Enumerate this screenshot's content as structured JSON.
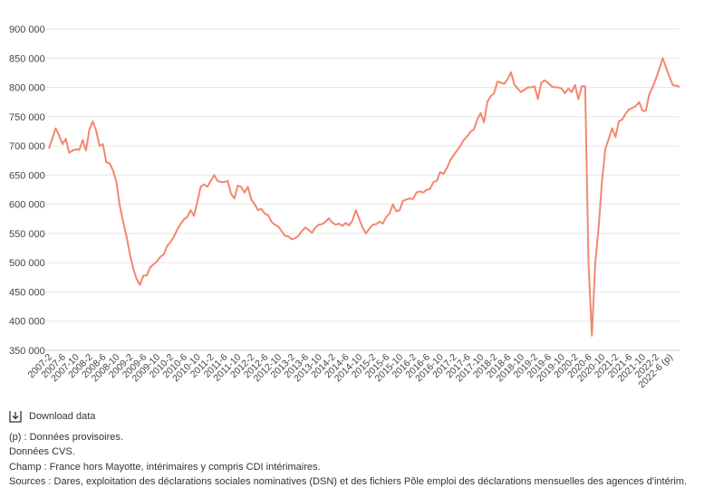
{
  "chart_data": {
    "type": "line",
    "title": "",
    "xlabel": "",
    "ylabel": "",
    "ylim": [
      350000,
      900000
    ],
    "yticks": [
      350000,
      400000,
      450000,
      500000,
      550000,
      600000,
      650000,
      700000,
      750000,
      800000,
      850000,
      900000
    ],
    "ytick_labels": [
      "350 000",
      "400 000",
      "450 000",
      "500 000",
      "550 000",
      "600 000",
      "650 000",
      "700 000",
      "750 000",
      "800 000",
      "850 000",
      "900 000"
    ],
    "grid": "horizontal",
    "line_color": "#f4876f",
    "x_start": "2007-2",
    "x_tick_labels": [
      "2007-2",
      "2007-6",
      "2007-10",
      "2008-2",
      "2008-6",
      "2008-10",
      "2009-2",
      "2009-6",
      "2009-10",
      "2010-2",
      "2010-6",
      "2010-10",
      "2011-2",
      "2011-6",
      "2011-10",
      "2012-2",
      "2012-6",
      "2012-10",
      "2013-2",
      "2013-6",
      "2013-10",
      "2014-2",
      "2014-6",
      "2014-10",
      "2015-2",
      "2015-6",
      "2015-10",
      "2016-2",
      "2016-6",
      "2016-10",
      "2017-2",
      "2017-6",
      "2017-10",
      "2018-2",
      "2018-6",
      "2018-10",
      "2019-2",
      "2019-6",
      "2019-10",
      "2020-2",
      "2020-6",
      "2020-10",
      "2021-2",
      "2021-6",
      "2021-10",
      "2022-2",
      "2022-6 (p)"
    ],
    "values": [
      695000,
      712000,
      730000,
      718000,
      703000,
      712000,
      688000,
      692000,
      694000,
      693000,
      710000,
      692000,
      728000,
      742000,
      726000,
      700000,
      703000,
      672000,
      670000,
      658000,
      638000,
      598000,
      570000,
      545000,
      515000,
      490000,
      472000,
      462000,
      478000,
      478000,
      492000,
      497000,
      502000,
      510000,
      514000,
      528000,
      535000,
      544000,
      556000,
      566000,
      574000,
      578000,
      590000,
      580000,
      604000,
      630000,
      634000,
      630000,
      640000,
      650000,
      640000,
      638000,
      638000,
      640000,
      618000,
      610000,
      632000,
      630000,
      620000,
      630000,
      608000,
      600000,
      590000,
      592000,
      584000,
      581000,
      570000,
      565000,
      562000,
      554000,
      546000,
      545000,
      540000,
      542000,
      546000,
      554000,
      560000,
      556000,
      551000,
      560000,
      565000,
      566000,
      570000,
      576000,
      569000,
      565000,
      567000,
      563000,
      568000,
      564000,
      572000,
      590000,
      575000,
      560000,
      550000,
      558000,
      565000,
      566000,
      570000,
      567000,
      578000,
      584000,
      600000,
      588000,
      590000,
      606000,
      608000,
      610000,
      609000,
      620000,
      622000,
      620000,
      625000,
      626000,
      638000,
      640000,
      655000,
      652000,
      662000,
      675000,
      684000,
      692000,
      700000,
      710000,
      716000,
      724000,
      728000,
      745000,
      756000,
      740000,
      775000,
      785000,
      790000,
      810000,
      808000,
      806000,
      814000,
      826000,
      805000,
      798000,
      792000,
      796000,
      800000,
      800000,
      802000,
      780000,
      808000,
      812000,
      808000,
      802000,
      800000,
      800000,
      798000,
      790000,
      798000,
      792000,
      804000,
      780000,
      802000,
      802000,
      500000,
      375000,
      500000,
      560000,
      640000,
      695000,
      712000,
      730000,
      715000,
      742000,
      745000,
      755000,
      762000,
      765000,
      768000,
      775000,
      760000,
      760000,
      788000,
      800000,
      815000,
      832000,
      850000,
      834000,
      818000,
      804000,
      803000,
      801000
    ]
  },
  "footer": {
    "download_label": "Download data",
    "icon": "download-icon",
    "note_provisional": "(p) : Données provisoires.",
    "note_cvs": "Données CVS.",
    "note_scope": "Champ : France hors Mayotte, intérimaires y compris CDI intérimaires.",
    "note_sources": "Sources : Dares, exploitation des déclarations sociales nominatives (DSN) et des fichiers Pôle emploi des déclarations mensuelles des agences d'intérim."
  }
}
